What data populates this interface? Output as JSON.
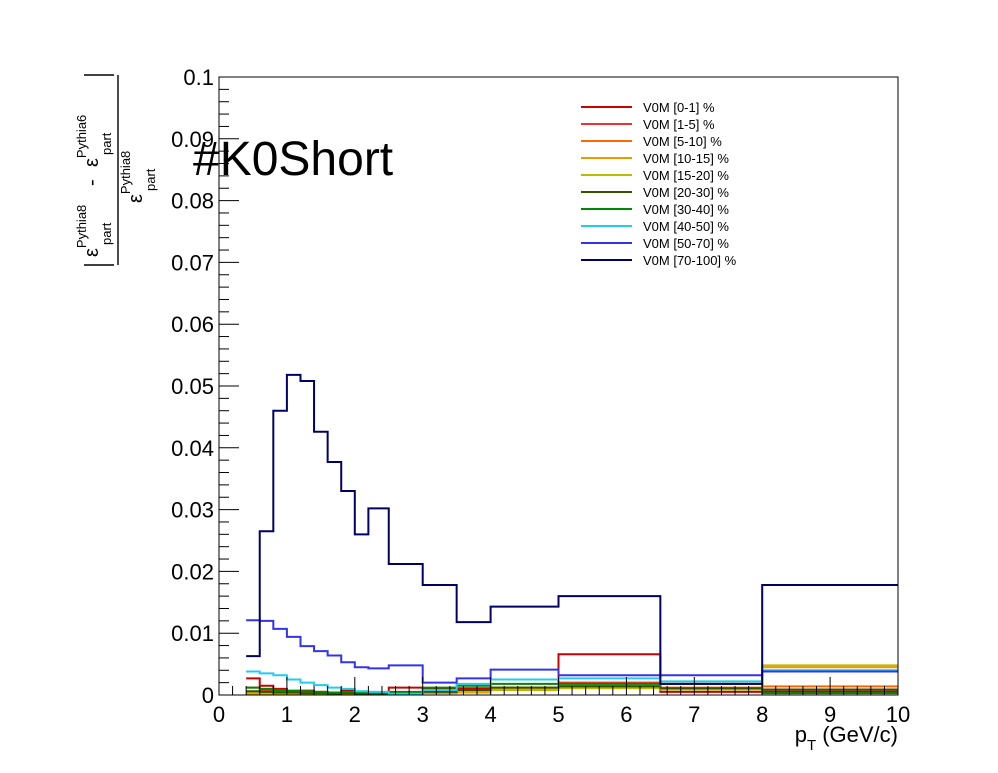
{
  "chart_data": {
    "type": "line",
    "subtype": "step-histogram",
    "title": "#K0Short",
    "xlabel": "p_T (GeV/c)",
    "xlabel_main": "p",
    "xlabel_sub": "T",
    "xlabel_unit": "(GeV/c)",
    "ylabel": "|ε_part^Pythia8 - ε_part^Pythia6| / ε_part^Pythia8",
    "ylabel_parts": {
      "eps": "ε",
      "sub": "part",
      "sup_a": "Pythia8",
      "sup_b": "Pythia6",
      "minus": "-",
      "den_sup": "Pythia8"
    },
    "xlim": [
      0,
      10
    ],
    "ylim": [
      0,
      0.1
    ],
    "xticks": [
      "0",
      "1",
      "2",
      "3",
      "4",
      "5",
      "6",
      "7",
      "8",
      "9",
      "10"
    ],
    "yticks": [
      "0",
      "0.01",
      "0.02",
      "0.03",
      "0.04",
      "0.05",
      "0.06",
      "0.07",
      "0.08",
      "0.09",
      "0.1"
    ],
    "grid": false,
    "legend_position": "top-right",
    "bin_edges": [
      0.4,
      0.6,
      0.8,
      1.0,
      1.2,
      1.4,
      1.6,
      1.8,
      2.0,
      2.2,
      2.5,
      3.0,
      3.5,
      4.0,
      5.0,
      6.5,
      8.0,
      10.0
    ],
    "series": [
      {
        "name": "V0M [0-1] %",
        "color": "#cc0000",
        "values": [
          0.0027,
          0.0015,
          0.001,
          0.0006,
          0.0007,
          0.0005,
          0.0003,
          0.0008,
          0.0005,
          0.0003,
          0.0012,
          0.0009,
          0.0011,
          0.001,
          0.0066,
          0.0005,
          0.0005
        ]
      },
      {
        "name": "V0M [1-5] %",
        "color": "#ee3333",
        "values": [
          0.0012,
          0.0008,
          0.0006,
          0.0004,
          0.0005,
          0.0003,
          0.0002,
          0.0004,
          0.0003,
          0.0002,
          0.0004,
          0.0005,
          0.0006,
          0.0012,
          0.002,
          0.001,
          0.0008
        ]
      },
      {
        "name": "V0M [5-10] %",
        "color": "#ff6600",
        "values": [
          0.0003,
          0.0002,
          0.0001,
          0.0003,
          0.0002,
          0.0001,
          0.0001,
          0.0002,
          0.0002,
          0.0001,
          0.0003,
          0.0004,
          0.0005,
          0.001,
          0.0015,
          0.0012,
          0.0014
        ]
      },
      {
        "name": "V0M [10-15] %",
        "color": "#ee9900",
        "values": [
          0.0002,
          0.0002,
          0.0001,
          0.0002,
          0.0001,
          0.0001,
          0.0001,
          0.0002,
          0.0001,
          0.0001,
          0.0002,
          0.0003,
          0.0004,
          0.0008,
          0.0012,
          0.001,
          0.0045
        ]
      },
      {
        "name": "V0M [15-20] %",
        "color": "#bbbb00",
        "values": [
          0.0004,
          0.0003,
          0.0002,
          0.0003,
          0.0002,
          0.0002,
          0.0002,
          0.0003,
          0.0002,
          0.0002,
          0.0003,
          0.0004,
          0.0006,
          0.0009,
          0.0011,
          0.0009,
          0.0048
        ]
      },
      {
        "name": "V0M [20-30] %",
        "color": "#335500",
        "values": [
          0.0006,
          0.0005,
          0.0004,
          0.0004,
          0.0003,
          0.0003,
          0.0002,
          0.0003,
          0.0002,
          0.0002,
          0.0004,
          0.0005,
          0.0008,
          0.0012,
          0.0014,
          0.0011,
          0.0009
        ]
      },
      {
        "name": "V0M [30-40] %",
        "color": "#008800",
        "values": [
          0.0012,
          0.001,
          0.0008,
          0.0007,
          0.0006,
          0.0005,
          0.0004,
          0.0005,
          0.0004,
          0.0003,
          0.0005,
          0.0012,
          0.0015,
          0.0018,
          0.0018,
          0.0018,
          0.0003
        ]
      },
      {
        "name": "V0M [40-50] %",
        "color": "#22ccee",
        "values": [
          0.0038,
          0.0035,
          0.0032,
          0.0025,
          0.002,
          0.0016,
          0.0012,
          0.001,
          0.0006,
          0.0005,
          0.0002,
          0.0008,
          0.0018,
          0.0025,
          0.0027,
          0.0022,
          0.004
        ]
      },
      {
        "name": "V0M [50-70] %",
        "color": "#3333ee",
        "values": [
          0.0121,
          0.012,
          0.0107,
          0.0094,
          0.0079,
          0.0071,
          0.0064,
          0.0053,
          0.0045,
          0.0043,
          0.0048,
          0.002,
          0.0027,
          0.0041,
          0.0032,
          0.0032,
          0.0038
        ]
      },
      {
        "name": "V0M [70-100] %",
        "color": "#000066",
        "values": [
          0.0063,
          0.0265,
          0.046,
          0.0518,
          0.0508,
          0.0426,
          0.0377,
          0.033,
          0.026,
          0.0302,
          0.0212,
          0.0178,
          0.0118,
          0.0143,
          0.016,
          0.0018,
          0.0178
        ]
      }
    ]
  }
}
